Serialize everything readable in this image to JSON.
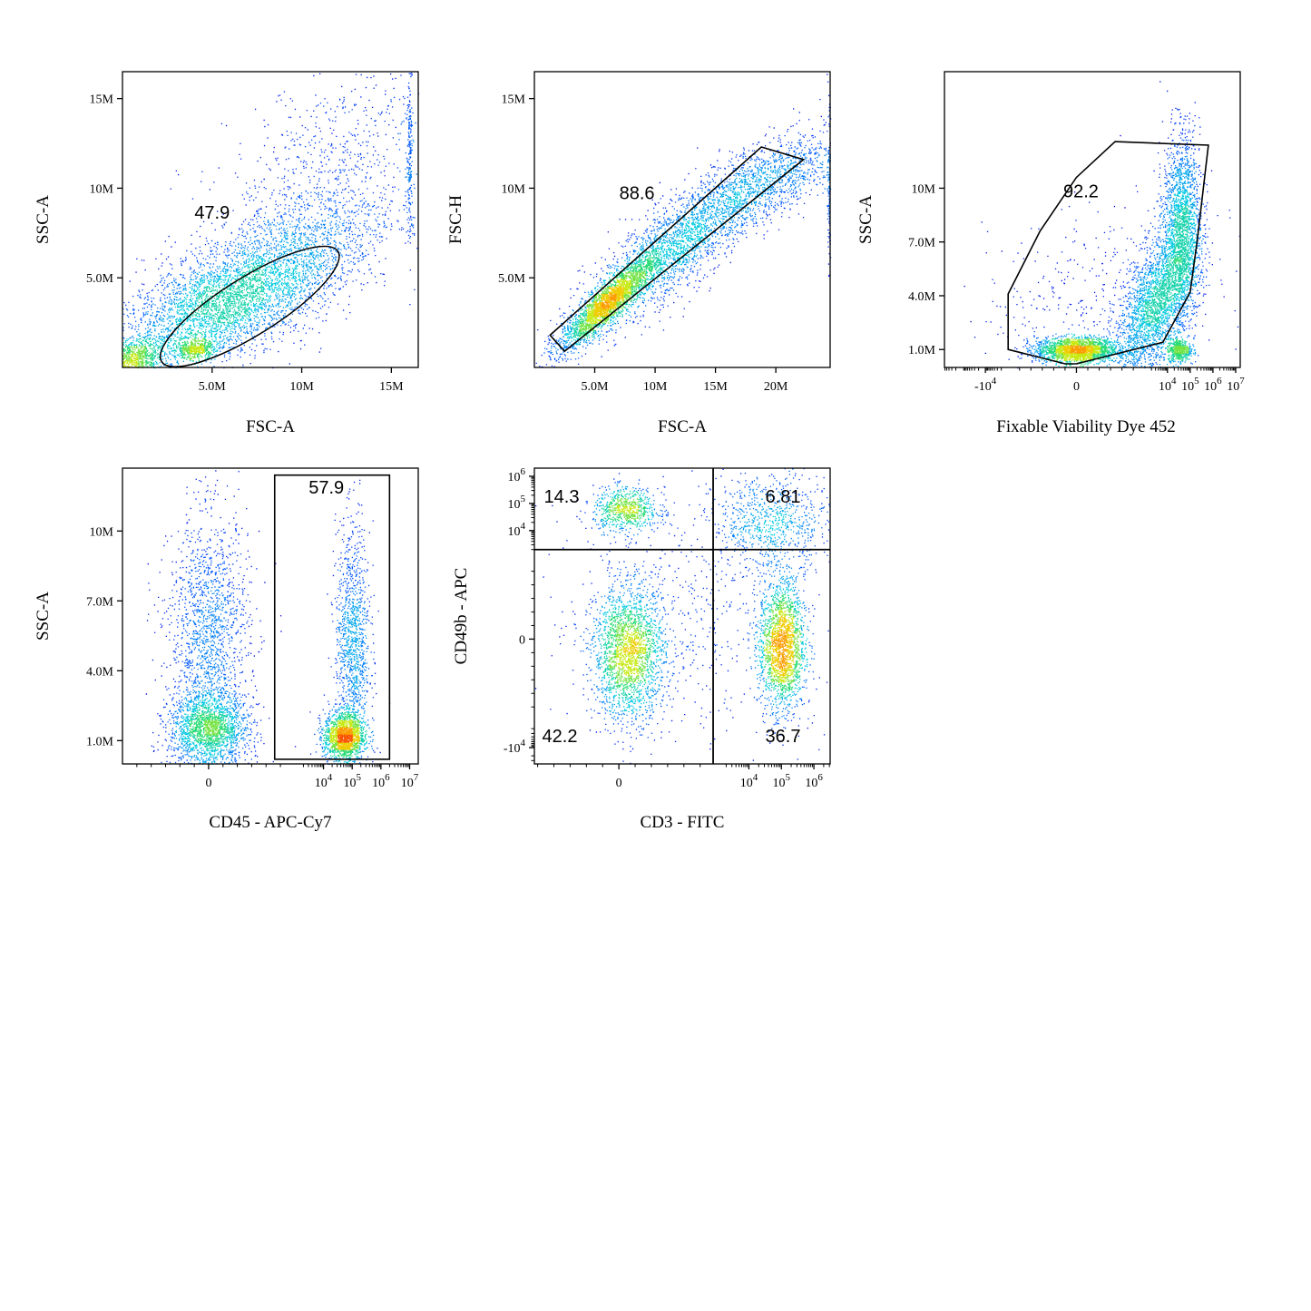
{
  "chart_data": [
    {
      "type": "scatter",
      "id": "p1",
      "xlabel": "FSC-A",
      "ylabel": "SSC-A",
      "xlim": [
        0,
        16.5
      ],
      "ylim": [
        0,
        16.5
      ],
      "xscale": "linear",
      "yscale": "linear",
      "xticks": [
        {
          "v": 5,
          "label": "5.0M"
        },
        {
          "v": 10,
          "label": "10M"
        },
        {
          "v": 15,
          "label": "15M"
        }
      ],
      "yticks": [
        {
          "v": 5,
          "label": "5.0M"
        },
        {
          "v": 10,
          "label": "10M"
        },
        {
          "v": 15,
          "label": "15M"
        }
      ],
      "clusters": [
        {
          "x": 5.5,
          "y": 3.5,
          "sx": 3.0,
          "sy": 1.8,
          "rho": 0.6,
          "n": 3200
        },
        {
          "x": 9.0,
          "y": 6.0,
          "sx": 3.2,
          "sy": 2.4,
          "rho": 0.6,
          "n": 1800
        },
        {
          "x": 0.8,
          "y": 0.6,
          "sx": 0.7,
          "sy": 0.5,
          "rho": 0.3,
          "n": 600
        },
        {
          "x": 4.0,
          "y": 1.0,
          "sx": 0.6,
          "sy": 0.25,
          "rho": 0.0,
          "n": 400
        },
        {
          "x": 16.0,
          "y": 12.0,
          "sx": 0.08,
          "sy": 2.5,
          "rho": 0.0,
          "n": 200
        },
        {
          "x": 12.0,
          "y": 12.0,
          "sx": 3.0,
          "sy": 2.5,
          "rho": 0.4,
          "n": 500
        }
      ],
      "gate": {
        "shape": "ellipse",
        "cx": 7.1,
        "cy": 3.4,
        "rx": 5.8,
        "ry": 1.6,
        "angle_deg": 32,
        "label": "47.9",
        "label_pos": [
          5.0,
          8.3
        ]
      }
    },
    {
      "type": "scatter",
      "id": "p2",
      "xlabel": "FSC-A",
      "ylabel": "FSC-H",
      "xlim": [
        0,
        24.5
      ],
      "ylim": [
        0,
        16.5
      ],
      "xscale": "linear",
      "yscale": "linear",
      "xticks": [
        {
          "v": 5,
          "label": "5.0M"
        },
        {
          "v": 10,
          "label": "10M"
        },
        {
          "v": 15,
          "label": "15M"
        },
        {
          "v": 20,
          "label": "20M"
        }
      ],
      "yticks": [
        {
          "v": 5,
          "label": "5.0M"
        },
        {
          "v": 10,
          "label": "10M"
        },
        {
          "v": 15,
          "label": "15M"
        }
      ],
      "clusters": [
        {
          "x": 6.0,
          "y": 3.6,
          "sx": 2.0,
          "sy": 1.3,
          "rho": 0.9,
          "n": 2400
        },
        {
          "x": 12.0,
          "y": 7.0,
          "sx": 4.0,
          "sy": 2.4,
          "rho": 0.85,
          "n": 2600
        },
        {
          "x": 20.0,
          "y": 10.5,
          "sx": 3.0,
          "sy": 1.4,
          "rho": 0.7,
          "n": 900
        },
        {
          "x": 24.4,
          "y": 10.0,
          "sx": 0.08,
          "sy": 2.0,
          "rho": 0.0,
          "n": 150
        }
      ],
      "gate": {
        "shape": "polygon",
        "points": [
          [
            1.3,
            1.8
          ],
          [
            18.8,
            12.3
          ],
          [
            22.3,
            11.6
          ],
          [
            2.5,
            0.9
          ]
        ],
        "label": "88.6",
        "label_pos": [
          8.5,
          9.4
        ]
      }
    },
    {
      "type": "scatter",
      "id": "p3",
      "xlabel": "Fixable Viability Dye 452",
      "ylabel": "SSC-A",
      "xlim": [
        -5.8,
        7.2
      ],
      "ylim": [
        0,
        16.5
      ],
      "xscale": "biexponential",
      "yscale": "linear",
      "xticks": [
        {
          "v": -4,
          "label": "-10",
          "sup": "4"
        },
        {
          "v": 0,
          "label": "0"
        },
        {
          "v": 4,
          "label": "10",
          "sup": "4"
        },
        {
          "v": 5,
          "label": "10",
          "sup": "5"
        },
        {
          "v": 6,
          "label": "10",
          "sup": "6"
        },
        {
          "v": 7,
          "label": "10",
          "sup": "7"
        }
      ],
      "yticks": [
        {
          "v": 1,
          "label": "1.0M"
        },
        {
          "v": 4,
          "label": "4.0M"
        },
        {
          "v": 7,
          "label": "7.0M"
        },
        {
          "v": 10,
          "label": "10M"
        }
      ],
      "clusters": [
        {
          "x": 0.0,
          "y": 1.0,
          "sx": 0.9,
          "sy": 0.35,
          "rho": 0.0,
          "n": 2000
        },
        {
          "x": 3.5,
          "y": 3.5,
          "sx": 0.9,
          "sy": 2.2,
          "rho": 0.6,
          "n": 2600
        },
        {
          "x": 4.6,
          "y": 8.0,
          "sx": 0.4,
          "sy": 2.5,
          "rho": 0.0,
          "n": 1800
        },
        {
          "x": 4.5,
          "y": 1.0,
          "sx": 0.25,
          "sy": 0.3,
          "rho": 0.0,
          "n": 500
        },
        {
          "x": 1.0,
          "y": 4.0,
          "sx": 2.5,
          "sy": 2.5,
          "rho": 0.2,
          "n": 400
        }
      ],
      "gate": {
        "shape": "polygon",
        "points": [
          [
            -3.0,
            1.0
          ],
          [
            -3.0,
            4.1
          ],
          [
            -1.6,
            7.6
          ],
          [
            0.0,
            10.6
          ],
          [
            1.7,
            12.6
          ],
          [
            5.8,
            12.4
          ],
          [
            5.3,
            7.0
          ],
          [
            5.0,
            4.2
          ],
          [
            3.8,
            1.4
          ],
          [
            0.0,
            0.2
          ],
          [
            -0.5,
            0.2
          ]
        ],
        "label": "92.2",
        "label_pos": [
          0.2,
          9.5
        ]
      }
    },
    {
      "type": "scatter",
      "id": "p4",
      "xlabel": "CD45 - APC-Cy7",
      "ylabel": "SSC-A",
      "xlim": [
        -3.0,
        7.3
      ],
      "ylim": [
        0,
        12.7
      ],
      "xscale": "biexponential",
      "yscale": "linear",
      "xticks": [
        {
          "v": 0,
          "label": "0"
        },
        {
          "v": 4,
          "label": "10",
          "sup": "4"
        },
        {
          "v": 5,
          "label": "10",
          "sup": "5"
        },
        {
          "v": 6,
          "label": "10",
          "sup": "6"
        },
        {
          "v": 7,
          "label": "10",
          "sup": "7"
        }
      ],
      "yticks": [
        {
          "v": 1,
          "label": "1.0M"
        },
        {
          "v": 4,
          "label": "4.0M"
        },
        {
          "v": 7,
          "label": "7.0M"
        },
        {
          "v": 10,
          "label": "10M"
        }
      ],
      "clusters": [
        {
          "x": 0.0,
          "y": 1.5,
          "sx": 0.7,
          "sy": 0.8,
          "rho": 0.0,
          "n": 1800
        },
        {
          "x": 0.0,
          "y": 5.5,
          "sx": 0.7,
          "sy": 2.6,
          "rho": 0.0,
          "n": 1600
        },
        {
          "x": 4.7,
          "y": 1.2,
          "sx": 0.35,
          "sy": 0.5,
          "rho": 0.0,
          "n": 1500
        },
        {
          "x": 5.0,
          "y": 5.0,
          "sx": 0.3,
          "sy": 2.6,
          "rho": 0.0,
          "n": 1200
        }
      ],
      "gate": {
        "shape": "rect",
        "x0": 2.3,
        "x1": 6.3,
        "y0": 0.2,
        "y1": 12.4,
        "label": "57.9",
        "label_pos": [
          4.1,
          11.6
        ]
      }
    },
    {
      "type": "scatter",
      "id": "p5",
      "xlabel": "CD3 - FITC",
      "ylabel": "CD49b - APC",
      "xlim": [
        -2.6,
        6.5
      ],
      "ylim": [
        -4.6,
        6.3
      ],
      "xscale": "biexponential",
      "yscale": "biexponential",
      "xticks": [
        {
          "v": 0,
          "label": "0"
        },
        {
          "v": 4,
          "label": "10",
          "sup": "4"
        },
        {
          "v": 5,
          "label": "10",
          "sup": "5"
        },
        {
          "v": 6,
          "label": "10",
          "sup": "6"
        }
      ],
      "yticks": [
        {
          "v": -4,
          "label": "-10",
          "sup": "4"
        },
        {
          "v": 0,
          "label": "0"
        },
        {
          "v": 4,
          "label": "10",
          "sup": "4"
        },
        {
          "v": 5,
          "label": "10",
          "sup": "5"
        },
        {
          "v": 6,
          "label": "10",
          "sup": "6"
        }
      ],
      "clusters": [
        {
          "x": 0.3,
          "y": -0.5,
          "sx": 0.55,
          "sy": 1.2,
          "rho": 0.0,
          "n": 2200
        },
        {
          "x": 5.0,
          "y": -0.2,
          "sx": 0.35,
          "sy": 1.2,
          "rho": 0.0,
          "n": 2000
        },
        {
          "x": 0.2,
          "y": 4.8,
          "sx": 0.5,
          "sy": 0.4,
          "rho": 0.0,
          "n": 700
        },
        {
          "x": 4.7,
          "y": 4.3,
          "sx": 0.9,
          "sy": 0.9,
          "rho": 0.0,
          "n": 800
        },
        {
          "x": 2.0,
          "y": 1.0,
          "sx": 2.2,
          "sy": 2.5,
          "rho": 0.0,
          "n": 600
        }
      ],
      "quadrants": {
        "x": 2.9,
        "y": 3.3,
        "labels": [
          {
            "text": "14.3",
            "pos": "top-left"
          },
          {
            "text": "6.81",
            "pos": "top-right"
          },
          {
            "text": "42.2",
            "pos": "bottom-left"
          },
          {
            "text": "36.7",
            "pos": "bottom-right"
          }
        ]
      }
    }
  ]
}
